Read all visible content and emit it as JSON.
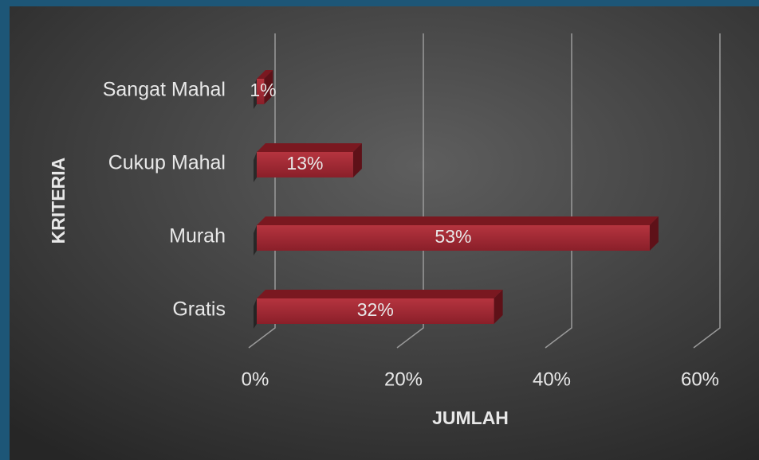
{
  "chart_data": {
    "type": "bar",
    "orientation": "horizontal",
    "x_label": "JUMLAH",
    "y_label": "KRITERIA",
    "categories": [
      "Sangat Mahal",
      "Cukup Mahal",
      "Murah",
      "Gratis"
    ],
    "values": [
      1,
      13,
      53,
      32
    ],
    "value_labels": [
      "1%",
      "13%",
      "53%",
      "32%"
    ],
    "color": "#a32a35",
    "xlim": [
      0,
      60
    ],
    "xticks": [
      {
        "value": 0,
        "label": "0%"
      },
      {
        "value": 20,
        "label": "20%"
      },
      {
        "value": 40,
        "label": "40%"
      },
      {
        "value": 60,
        "label": "60%"
      }
    ],
    "grid": true
  }
}
